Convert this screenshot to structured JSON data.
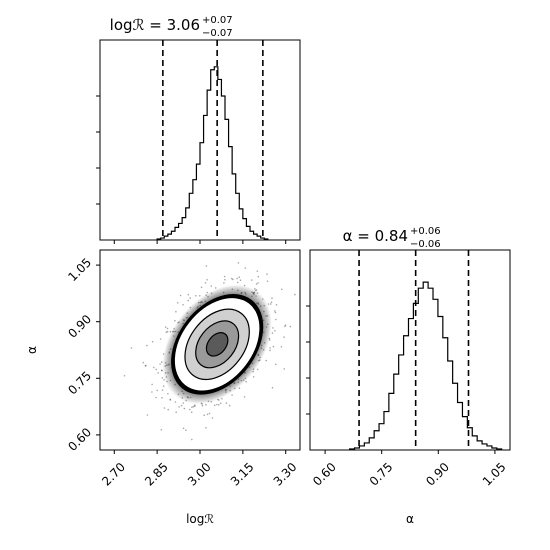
{
  "chart_data": [
    {
      "type": "histogram",
      "panel": "marginal-logR",
      "title": {
        "lhs": "logℛ = 3.06",
        "sup": "+0.07",
        "sub": "−0.07"
      },
      "quantiles": [
        2.87,
        3.06,
        3.22
      ],
      "xlim": [
        2.65,
        3.35
      ],
      "bin_edges_from": 2.85,
      "bin_width": 0.0125,
      "counts": [
        1,
        2,
        4,
        6,
        9,
        13,
        17,
        23,
        33,
        48,
        62,
        78,
        100,
        128,
        154,
        175,
        178,
        165,
        148,
        124,
        96,
        68,
        48,
        32,
        22,
        14,
        9,
        6,
        4,
        2,
        1
      ],
      "ymax": 185
    },
    {
      "type": "histogram",
      "panel": "marginal-alpha",
      "title": {
        "lhs": "α = 0.84",
        "sup": "+0.06",
        "sub": "−0.06"
      },
      "quantiles": [
        0.69,
        0.84,
        0.98
      ],
      "xlim": [
        0.56,
        1.09
      ],
      "bin_edges_from": 0.665,
      "bin_width": 0.013,
      "counts": [
        1,
        2,
        4,
        7,
        12,
        19,
        26,
        38,
        56,
        75,
        94,
        113,
        130,
        145,
        160,
        166,
        160,
        149,
        132,
        111,
        88,
        66,
        47,
        33,
        22,
        14,
        9,
        6,
        4,
        2,
        1
      ],
      "ymax": 178
    },
    {
      "type": "scatter-density",
      "panel": "joint-logR-alpha",
      "xlabel": "logℛ",
      "ylabel": "α",
      "xlim": [
        2.65,
        3.35
      ],
      "ylim": [
        0.56,
        1.09
      ],
      "x_ticks": [
        "2.70",
        "2.85",
        "3.00",
        "3.15",
        "3.30"
      ],
      "y_ticks": [
        "0.60",
        "0.75",
        "0.90",
        "1.05"
      ],
      "center": [
        3.06,
        0.84
      ],
      "sigma": [
        0.075,
        0.062
      ],
      "correlation": 0.35,
      "contour_sigmas": [
        0.5,
        1.0,
        1.5,
        2.0
      ]
    }
  ],
  "labels": {
    "x_logR": "logℛ",
    "x_alpha": "α",
    "y_alpha": "α",
    "hist_logR_title_main": "logℛ = 3.06",
    "hist_logR_title_sup": "+0.07",
    "hist_logR_title_sub": "−0.07",
    "hist_alpha_title_main": "α = 0.84",
    "hist_alpha_title_sup": "+0.06",
    "hist_alpha_title_sub": "−0.06",
    "tick_logR": [
      "2.70",
      "2.85",
      "3.00",
      "3.15",
      "3.30"
    ],
    "tick_alpha": [
      "0.60",
      "0.75",
      "0.90",
      "1.05"
    ]
  }
}
